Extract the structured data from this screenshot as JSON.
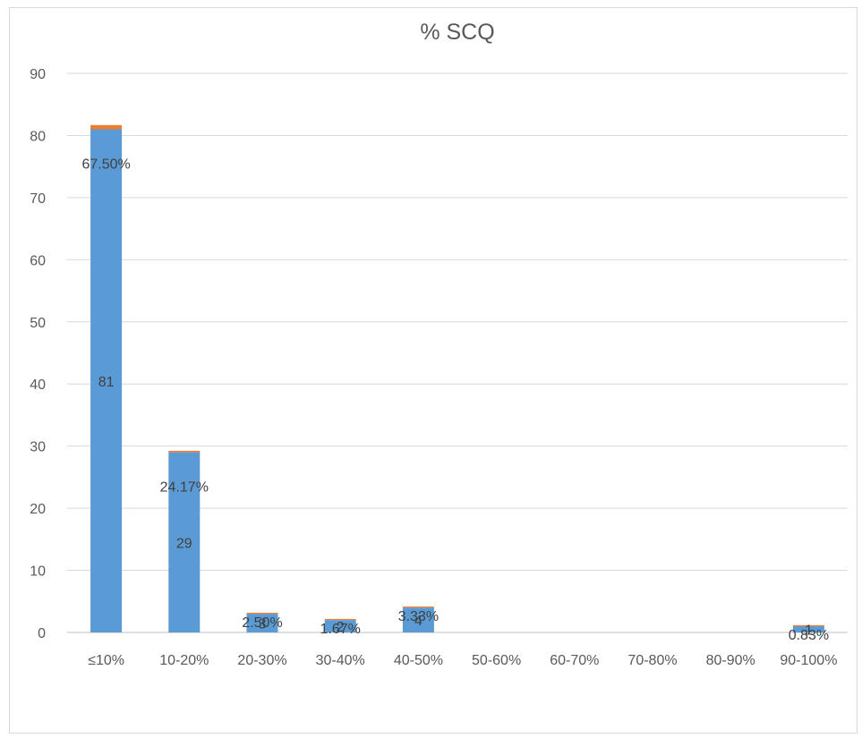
{
  "chart_data": {
    "type": "bar",
    "stacked": true,
    "title": "% SCQ",
    "xlabel": "",
    "ylabel": "",
    "ylim": [
      0,
      90
    ],
    "yticks": [
      0,
      10,
      20,
      30,
      40,
      50,
      60,
      70,
      80,
      90
    ],
    "grid": true,
    "legend": "none",
    "categories": [
      "≤10%",
      "10-20%",
      "20-30%",
      "30-40%",
      "40-50%",
      "50-60%",
      "60-70%",
      "70-80%",
      "80-90%",
      "90-100%"
    ],
    "series": [
      {
        "color": "#5b9bd5",
        "values": [
          81,
          29,
          3,
          2,
          4,
          0,
          0,
          0,
          0,
          1
        ],
        "labels": [
          "81",
          "29",
          "3",
          "2",
          "4",
          "",
          "",
          "",
          "",
          "1"
        ]
      },
      {
        "color": "#ed7d31",
        "values": [
          0.675,
          0.2417,
          0.025,
          0.0167,
          0.0333,
          0,
          0,
          0,
          0,
          0.0083
        ],
        "labels": [
          "67.50%",
          "24.17%",
          "2.50%",
          "1.67%",
          "3.33%",
          "",
          "",
          "",
          "",
          "0.83%"
        ]
      }
    ]
  }
}
